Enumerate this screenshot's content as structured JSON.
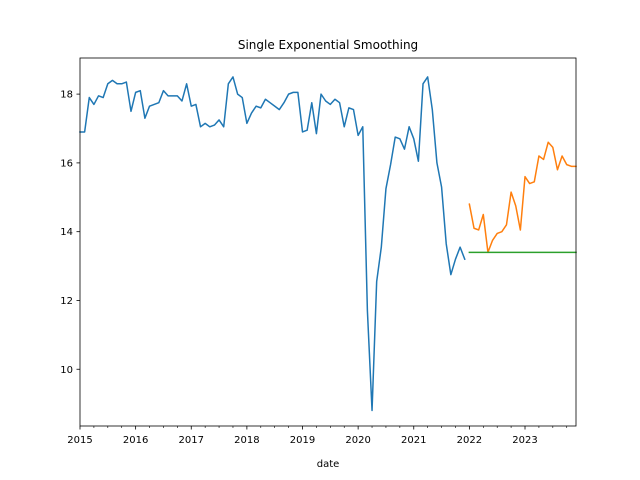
{
  "chart_data": {
    "type": "line",
    "title": "Single Exponential Smoothing",
    "xlabel": "date",
    "ylabel": "",
    "xlim": [
      "2015-01",
      "2023-12"
    ],
    "ylim": [
      8.35,
      19.05
    ],
    "grid": false,
    "legend": "none",
    "x_ticks": [
      "2015",
      "2016",
      "2017",
      "2018",
      "2019",
      "2020",
      "2021",
      "2022",
      "2023"
    ],
    "y_ticks": [
      10,
      12,
      14,
      16,
      18
    ],
    "series": [
      {
        "color": "#1f77b4",
        "x": [
          "2015-01",
          "2015-02",
          "2015-03",
          "2015-04",
          "2015-05",
          "2015-06",
          "2015-07",
          "2015-08",
          "2015-09",
          "2015-10",
          "2015-11",
          "2015-12",
          "2016-01",
          "2016-02",
          "2016-03",
          "2016-04",
          "2016-05",
          "2016-06",
          "2016-07",
          "2016-08",
          "2016-09",
          "2016-10",
          "2016-11",
          "2016-12",
          "2017-01",
          "2017-02",
          "2017-03",
          "2017-04",
          "2017-05",
          "2017-06",
          "2017-07",
          "2017-08",
          "2017-09",
          "2017-10",
          "2017-11",
          "2017-12",
          "2018-01",
          "2018-02",
          "2018-03",
          "2018-04",
          "2018-05",
          "2018-06",
          "2018-07",
          "2018-08",
          "2018-09",
          "2018-10",
          "2018-11",
          "2018-12",
          "2019-01",
          "2019-02",
          "2019-03",
          "2019-04",
          "2019-05",
          "2019-06",
          "2019-07",
          "2019-08",
          "2019-09",
          "2019-10",
          "2019-11",
          "2019-12",
          "2020-01",
          "2020-02",
          "2020-03",
          "2020-04",
          "2020-05",
          "2020-06",
          "2020-07",
          "2020-08",
          "2020-09",
          "2020-10",
          "2020-11",
          "2020-12",
          "2021-01",
          "2021-02",
          "2021-03",
          "2021-04",
          "2021-05",
          "2021-06",
          "2021-07",
          "2021-08",
          "2021-09",
          "2021-10",
          "2021-11",
          "2021-12"
        ],
        "values": [
          16.9,
          16.9,
          17.9,
          17.7,
          17.95,
          17.9,
          18.3,
          18.4,
          18.3,
          18.3,
          18.35,
          17.5,
          18.05,
          18.1,
          17.3,
          17.65,
          17.7,
          17.75,
          18.1,
          17.95,
          17.95,
          17.95,
          17.8,
          18.3,
          17.65,
          17.7,
          17.05,
          17.15,
          17.05,
          17.1,
          17.25,
          17.05,
          18.3,
          18.5,
          18.0,
          17.9,
          17.15,
          17.45,
          17.65,
          17.6,
          17.85,
          17.75,
          17.65,
          17.55,
          17.75,
          18.0,
          18.05,
          18.05,
          16.9,
          16.95,
          17.75,
          16.85,
          18.0,
          17.8,
          17.7,
          17.85,
          17.75,
          17.05,
          17.6,
          17.55,
          16.8,
          17.05,
          11.7,
          8.8,
          12.55,
          13.55,
          15.25,
          15.95,
          16.75,
          16.7,
          16.4,
          17.05,
          16.7,
          16.05,
          18.3,
          18.5,
          17.55,
          16.0,
          15.3,
          13.65,
          12.75,
          13.2,
          13.55,
          13.2
        ]
      },
      {
        "color": "#ff7f0e",
        "x": [
          "2022-01",
          "2022-02",
          "2022-03",
          "2022-04",
          "2022-05",
          "2022-06",
          "2022-07",
          "2022-08",
          "2022-09",
          "2022-10",
          "2022-11",
          "2022-12",
          "2023-01",
          "2023-02",
          "2023-03",
          "2023-04",
          "2023-05",
          "2023-06",
          "2023-07",
          "2023-08",
          "2023-09",
          "2023-10",
          "2023-11",
          "2023-12"
        ],
        "values": [
          14.8,
          14.1,
          14.05,
          14.5,
          13.4,
          13.75,
          13.95,
          14.0,
          14.2,
          15.15,
          14.75,
          14.05,
          15.6,
          15.4,
          15.45,
          16.2,
          16.1,
          16.6,
          16.45,
          15.8,
          16.2,
          15.95,
          15.9,
          15.9
        ]
      },
      {
        "color": "#2ca02c",
        "x": [
          "2022-01",
          "2023-12"
        ],
        "values": [
          13.4,
          13.4
        ]
      }
    ]
  }
}
